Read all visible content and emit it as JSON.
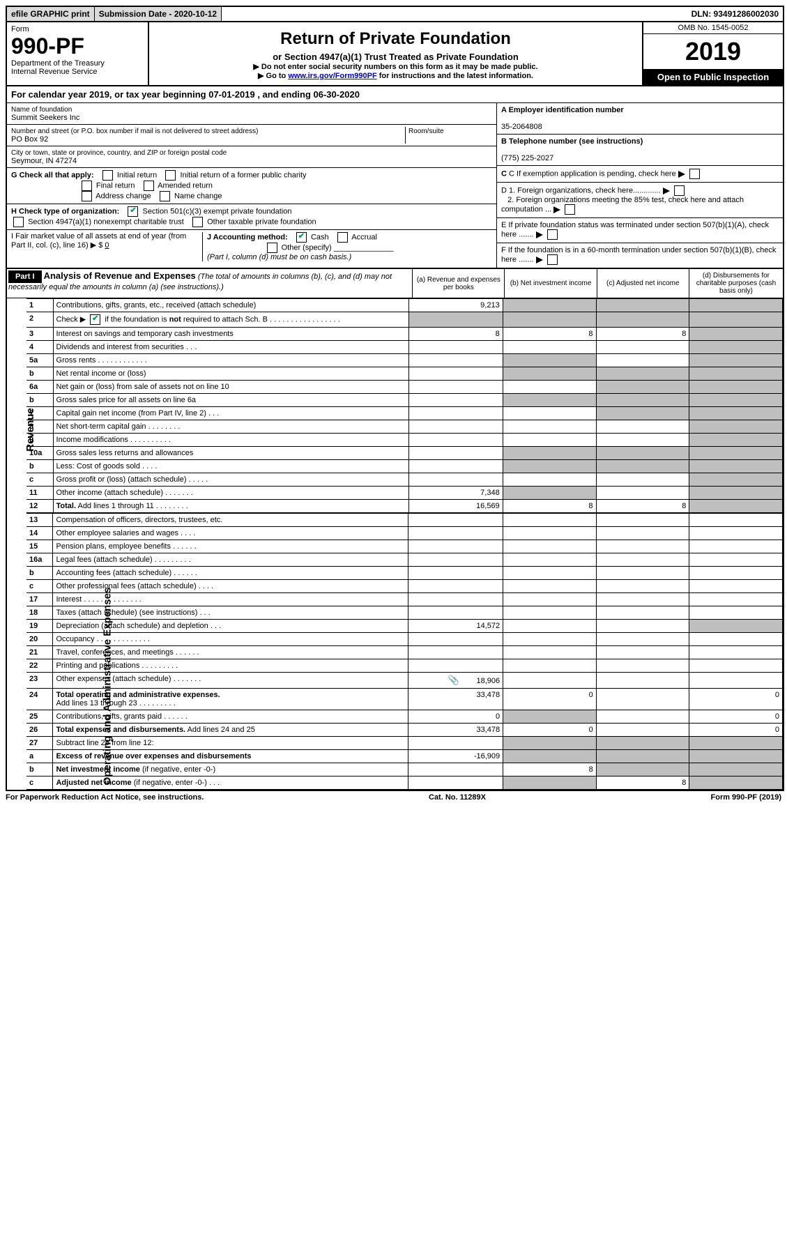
{
  "top": {
    "efile": "efile GRAPHIC print",
    "submission": "Submission Date - 2020-10-12",
    "dln": "DLN: 93491286002030"
  },
  "header": {
    "form_word": "Form",
    "form_no": "990-PF",
    "dept": "Department of the Treasury",
    "irs": "Internal Revenue Service",
    "title": "Return of Private Foundation",
    "subtitle": "or Section 4947(a)(1) Trust Treated as Private Foundation",
    "inst1": "▶ Do not enter social security numbers on this form as it may be made public.",
    "inst2_pre": "▶ Go to ",
    "inst2_link": "www.irs.gov/Form990PF",
    "inst2_post": " for instructions and the latest information.",
    "omb": "OMB No. 1545-0052",
    "year": "2019",
    "open": "Open to Public Inspection"
  },
  "calyear": "For calendar year 2019, or tax year beginning 07-01-2019                                  , and ending 06-30-2020",
  "ident": {
    "name_lbl": "Name of foundation",
    "name": "Summit Seekers Inc",
    "addr_lbl": "Number and street (or P.O. box number if mail is not delivered to street address)",
    "room_lbl": "Room/suite",
    "addr": "PO Box 92",
    "city_lbl": "City or town, state or province, country, and ZIP or foreign postal code",
    "city": "Seymour, IN  47274",
    "g_lbl": "G Check all that apply:",
    "g_initial": "Initial return",
    "g_initial_former": "Initial return of a former public charity",
    "g_final": "Final return",
    "g_amended": "Amended return",
    "g_address": "Address change",
    "g_name": "Name change",
    "h_lbl": "H Check type of organization:",
    "h_501": "Section 501(c)(3) exempt private foundation",
    "h_4947": "Section 4947(a)(1) nonexempt charitable trust",
    "h_other": "Other taxable private foundation",
    "i_lbl": "I Fair market value of all assets at end of year (from Part II, col. (c), line 16) ▶ $",
    "i_val": "0",
    "j_lbl": "J Accounting method:",
    "j_cash": "Cash",
    "j_accrual": "Accrual",
    "j_other": "Other (specify)",
    "j_note": "(Part I, column (d) must be on cash basis.)",
    "a_lbl": "A Employer identification number",
    "a_val": "35-2064808",
    "b_lbl": "B Telephone number (see instructions)",
    "b_val": "(775) 225-2027",
    "c_lbl": "C  If exemption application is pending, check here",
    "d1_lbl": "D 1. Foreign organizations, check here.............",
    "d2_lbl": "2. Foreign organizations meeting the 85% test, check here and attach computation ...",
    "e_lbl": "E  If private foundation status was terminated under section 507(b)(1)(A), check here .......",
    "f_lbl": "F  If the foundation is in a 60-month termination under section 507(b)(1)(B), check here ......."
  },
  "part1": {
    "label": "Part I",
    "title": "Analysis of Revenue and Expenses",
    "note": "(The total of amounts in columns (b), (c), and (d) may not necessarily equal the amounts in column (a) (see instructions).)",
    "col_a": "(a)   Revenue and expenses per books",
    "col_b": "(b)  Net investment income",
    "col_c": "(c)  Adjusted net income",
    "col_d": "(d)  Disbursements for charitable purposes (cash basis only)"
  },
  "side_revenue": "Revenue",
  "side_expenses": "Operating and Administrative Expenses",
  "rows": {
    "r1": {
      "n": "1",
      "lbl": "Contributions, gifts, grants, etc., received (attach schedule)",
      "a": "9,213"
    },
    "r2": {
      "n": "2",
      "lbl": "Check ▶        if the foundation is not required to attach Sch. B   .  .  .  .  .  .  .  .  .  .  .  .  .  .  .  .  ."
    },
    "r3": {
      "n": "3",
      "lbl": "Interest on savings and temporary cash investments",
      "a": "8",
      "b": "8",
      "c": "8"
    },
    "r4": {
      "n": "4",
      "lbl": "Dividends and interest from securities   .    .    ."
    },
    "r5a": {
      "n": "5a",
      "lbl": "Gross rents   .   .   .   .   .   .   .   .   .   .   .   ."
    },
    "r5b": {
      "n": "b",
      "lbl": "Net rental income or (loss)  "
    },
    "r6a": {
      "n": "6a",
      "lbl": "Net gain or (loss) from sale of assets not on line 10"
    },
    "r6b": {
      "n": "b",
      "lbl": "Gross sales price for all assets on line 6a  "
    },
    "r7": {
      "n": "7",
      "lbl": "Capital gain net income (from Part IV, line 2)    .    .    ."
    },
    "r8": {
      "n": "8",
      "lbl": "Net short-term capital gain   .   .   .   .   .   .   .   ."
    },
    "r9": {
      "n": "9",
      "lbl": "Income modifications  .   .   .   .   .   .   .   .   .   ."
    },
    "r10a": {
      "n": "10a",
      "lbl": "Gross sales less returns and allowances"
    },
    "r10b": {
      "n": "b",
      "lbl": "Less: Cost of goods sold   .    .    .    ."
    },
    "r10c": {
      "n": "c",
      "lbl": "Gross profit or (loss) (attach schedule)    .    .    .    .    ."
    },
    "r11": {
      "n": "11",
      "lbl": "Other income (attach schedule)    .    .    .    .    .    .    .",
      "a": "7,348"
    },
    "r12": {
      "n": "12",
      "lbl": "Total. Add lines 1 through 11    .    .    .    .    .    .    .    .",
      "a": "16,569",
      "b": "8",
      "c": "8"
    },
    "r13": {
      "n": "13",
      "lbl": "Compensation of officers, directors, trustees, etc."
    },
    "r14": {
      "n": "14",
      "lbl": "Other employee salaries and wages    .    .    .    ."
    },
    "r15": {
      "n": "15",
      "lbl": "Pension plans, employee benefits   .    .    .    .    .    ."
    },
    "r16a": {
      "n": "16a",
      "lbl": "Legal fees (attach schedule)  .    .    .    .    .    .    .    .    ."
    },
    "r16b": {
      "n": "b",
      "lbl": "Accounting fees (attach schedule)   .    .    .    .    .    ."
    },
    "r16c": {
      "n": "c",
      "lbl": "Other professional fees (attach schedule)    .    .    .    ."
    },
    "r17": {
      "n": "17",
      "lbl": "Interest   .    .    .    .    .    .    .    .    .    .    .    .    .    ."
    },
    "r18": {
      "n": "18",
      "lbl": "Taxes (attach schedule) (see instructions)    .    .    ."
    },
    "r19": {
      "n": "19",
      "lbl": "Depreciation (attach schedule) and depletion    .    .    .",
      "a": "14,572"
    },
    "r20": {
      "n": "20",
      "lbl": "Occupancy  .    .    .    .    .    .    .    .    .    .    .    .    ."
    },
    "r21": {
      "n": "21",
      "lbl": "Travel, conferences, and meetings   .    .    .    .    .    ."
    },
    "r22": {
      "n": "22",
      "lbl": "Printing and publications  .    .    .    .    .    .    .    .    ."
    },
    "r23": {
      "n": "23",
      "lbl": "Other expenses (attach schedule)   .    .    .    .    .    .    .",
      "a": "18,906",
      "attach": true
    },
    "r24": {
      "n": "24",
      "lbl": "Total operating and administrative expenses. Add lines 13 through 23   .    .    .    .    .    .    .    .    .",
      "a": "33,478",
      "b": "0",
      "d": "0"
    },
    "r25": {
      "n": "25",
      "lbl": "Contributions, gifts, grants paid    .    .    .    .    .    .",
      "a": "0",
      "d": "0"
    },
    "r26": {
      "n": "26",
      "lbl": "Total expenses and disbursements. Add lines 24 and 25",
      "a": "33,478",
      "b": "0",
      "d": "0"
    },
    "r27": {
      "n": "27",
      "lbl": "Subtract line 26 from line 12:"
    },
    "r27a": {
      "n": "a",
      "lbl": "Excess of revenue over expenses and disbursements",
      "a": "-16,909"
    },
    "r27b": {
      "n": "b",
      "lbl": "Net investment income (if negative, enter -0-)",
      "b": "8"
    },
    "r27c": {
      "n": "c",
      "lbl": "Adjusted net income (if negative, enter -0-)   .    .    .",
      "c": "8"
    }
  },
  "footer": {
    "left": "For Paperwork Reduction Act Notice, see instructions.",
    "center": "Cat. No. 11289X",
    "right": "Form 990-PF (2019)"
  }
}
